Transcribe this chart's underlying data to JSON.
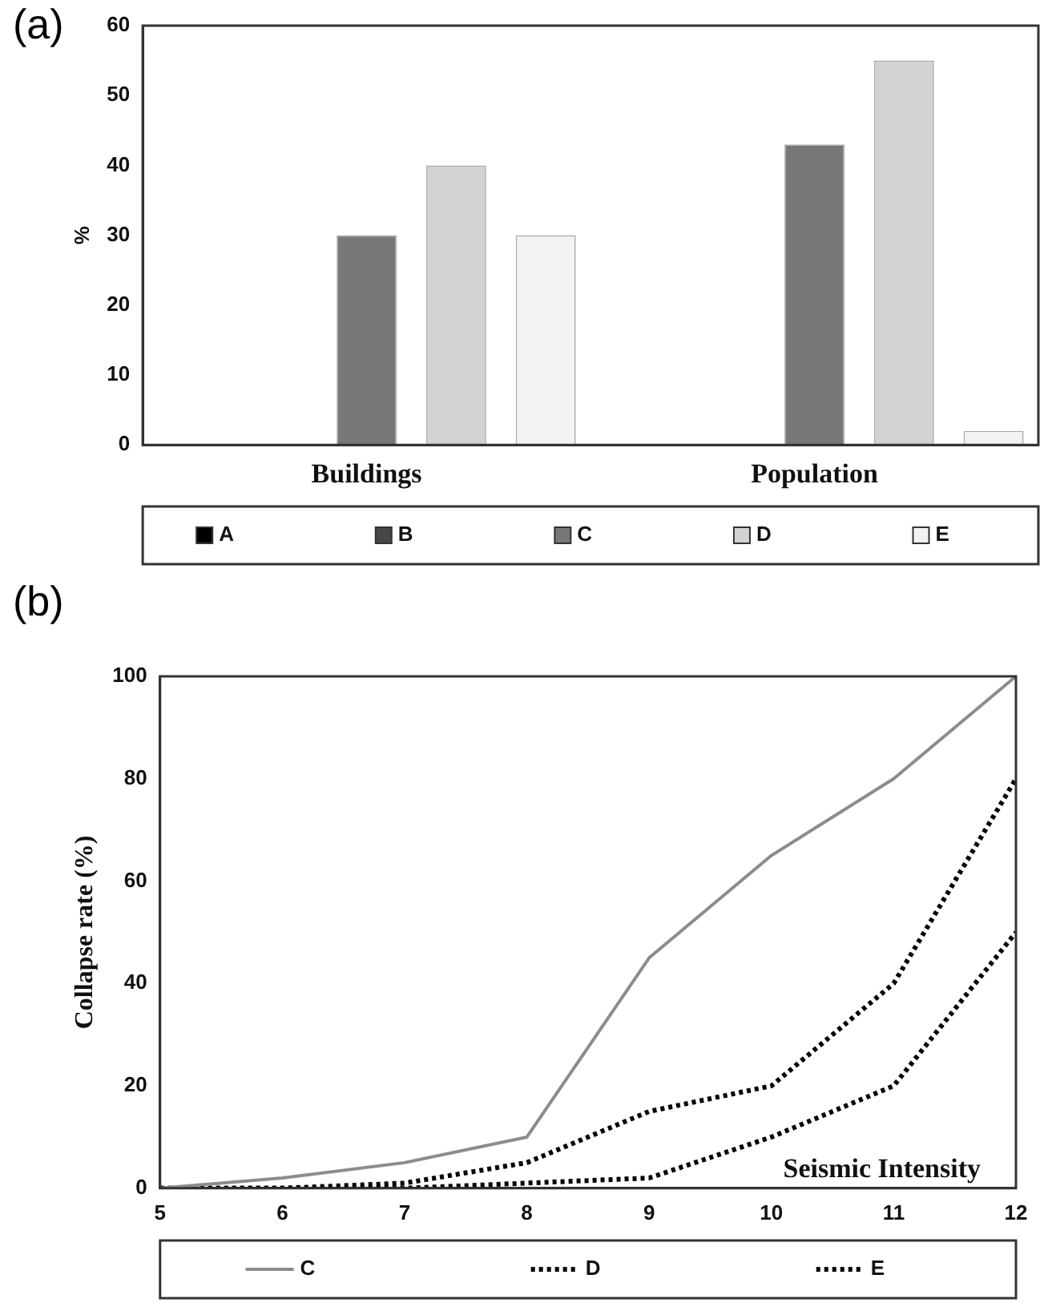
{
  "chart_data": [
    {
      "type": "bar",
      "title": "(a)",
      "ylabel": "%",
      "categories": [
        "Buildings",
        "Population"
      ],
      "series": [
        {
          "name": "A",
          "color": "#000000",
          "values": [
            null,
            null
          ]
        },
        {
          "name": "B",
          "color": "#474747",
          "values": [
            null,
            null
          ]
        },
        {
          "name": "C",
          "color": "#777777",
          "values": [
            30,
            43
          ]
        },
        {
          "name": "D",
          "color": "#d3d3d3",
          "values": [
            40,
            55
          ]
        },
        {
          "name": "E",
          "color": "#f2f2f2",
          "values": [
            30,
            2
          ]
        }
      ],
      "ylim": [
        0,
        60
      ],
      "yticks": [
        0,
        10,
        20,
        30,
        40,
        50,
        60
      ],
      "grid": false,
      "legend": "bottom"
    },
    {
      "type": "line",
      "title": "(b)",
      "xlabel": "Seismic Intensity",
      "ylabel": "Collapse rate (%)",
      "x": [
        5,
        6,
        7,
        8,
        9,
        10,
        11,
        12
      ],
      "series": [
        {
          "name": "C",
          "color": "#8c8c8c",
          "line_style": "solid",
          "values": [
            0,
            2,
            5,
            10,
            45,
            65,
            80,
            100
          ]
        },
        {
          "name": "D",
          "color": "#000000",
          "line_style": "dotted",
          "values": [
            0,
            0,
            1,
            5,
            15,
            20,
            40,
            80
          ]
        },
        {
          "name": "E",
          "color": "#000000",
          "line_style": "dotted",
          "values": [
            0,
            0,
            0,
            1,
            2,
            10,
            20,
            50
          ]
        }
      ],
      "xlim": [
        5,
        12
      ],
      "xticks": [
        5,
        6,
        7,
        8,
        9,
        10,
        11,
        12
      ],
      "ylim": [
        0,
        100
      ],
      "yticks": [
        0,
        20,
        40,
        60,
        80,
        100
      ],
      "grid": false,
      "legend": "bottom",
      "marker": "none"
    }
  ]
}
